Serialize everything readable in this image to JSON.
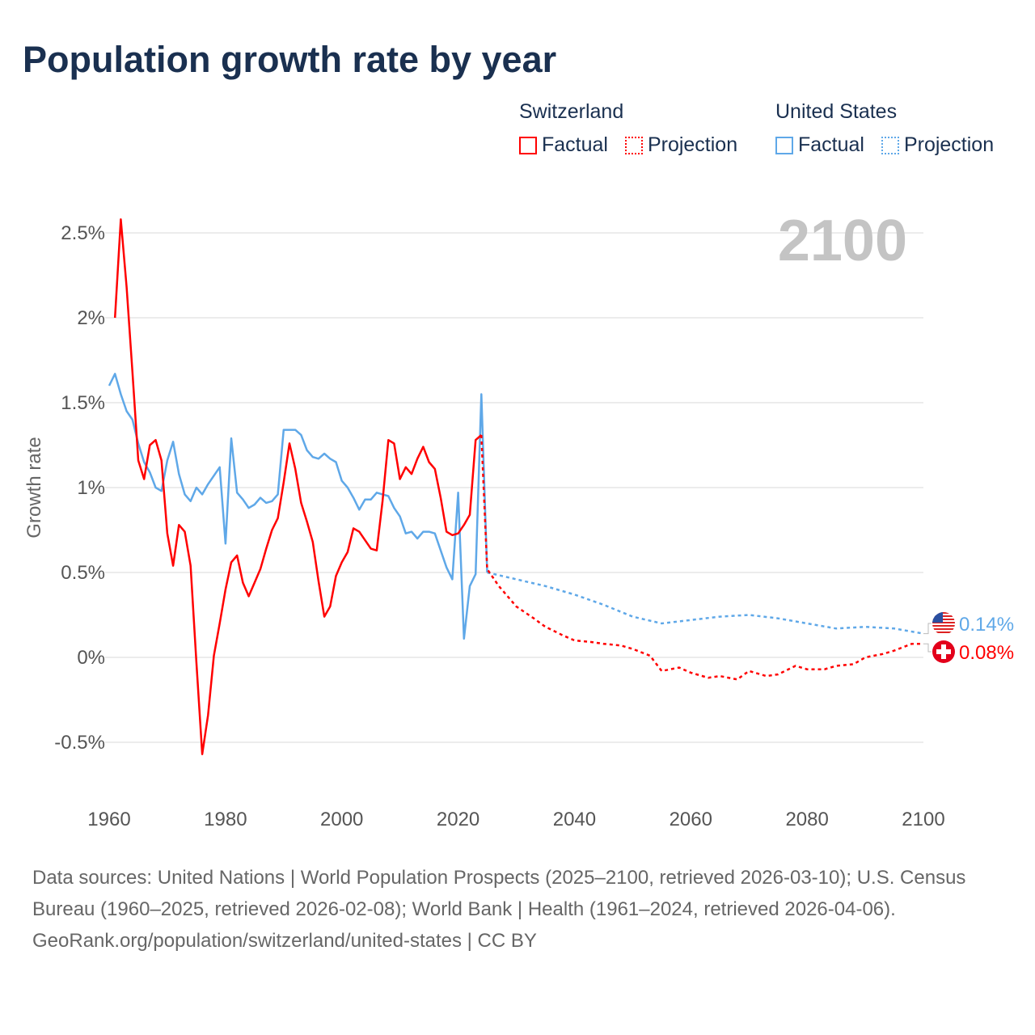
{
  "title": "Population growth rate by year",
  "legend": {
    "groups": [
      {
        "name": "Switzerland",
        "color": "#ff0000",
        "factual": "Factual",
        "projection": "Projection"
      },
      {
        "name": "United States",
        "color": "#5fa8e8",
        "factual": "Factual",
        "projection": "Projection"
      }
    ]
  },
  "year_label": "2100",
  "footer": {
    "sources": "Data sources: United Nations | World Population Prospects (2025–2100, retrieved 2026-03-10); U.S. Census Bureau (1960–2025, retrieved 2026-02-08); World Bank | Health (1961–2024, retrieved 2026-04-06).",
    "credit": "GeoRank.org/population/switzerland/united-states | CC BY"
  },
  "chart_data": {
    "type": "line",
    "title": "Population growth rate by year",
    "xlabel": "",
    "ylabel": "Growth rate",
    "xlim": [
      1960,
      2100
    ],
    "ylim": [
      -0.7,
      2.7
    ],
    "xticks": [
      1960,
      1980,
      2000,
      2020,
      2040,
      2060,
      2080,
      2100
    ],
    "xtick_labels": [
      "1960",
      "1980",
      "2000",
      "2020",
      "2040",
      "2060",
      "2080",
      "2100"
    ],
    "yticks": [
      -0.5,
      0,
      0.5,
      1,
      1.5,
      2,
      2.5
    ],
    "ytick_labels": [
      "-0.5%",
      "0%",
      "0.5%",
      "1%",
      "1.5%",
      "2%",
      "2.5%"
    ],
    "grid": true,
    "legend_position": "top-right",
    "series": [
      {
        "name": "Switzerland",
        "color": "#ff0000",
        "end_label": "0.08%",
        "factual": {
          "x": [
            1961,
            1962,
            1963,
            1964,
            1965,
            1966,
            1967,
            1968,
            1969,
            1970,
            1971,
            1972,
            1973,
            1974,
            1975,
            1976,
            1977,
            1978,
            1979,
            1980,
            1981,
            1982,
            1983,
            1984,
            1985,
            1986,
            1987,
            1988,
            1989,
            1990,
            1991,
            1992,
            1993,
            1994,
            1995,
            1996,
            1997,
            1998,
            1999,
            2000,
            2001,
            2002,
            2003,
            2004,
            2005,
            2006,
            2007,
            2008,
            2009,
            2010,
            2011,
            2012,
            2013,
            2014,
            2015,
            2016,
            2017,
            2018,
            2019,
            2020,
            2021,
            2022,
            2023,
            2024
          ],
          "y": [
            2.0,
            2.58,
            2.18,
            1.68,
            1.16,
            1.05,
            1.25,
            1.28,
            1.16,
            0.73,
            0.54,
            0.78,
            0.74,
            0.54,
            -0.03,
            -0.57,
            -0.34,
            0.01,
            0.2,
            0.4,
            0.56,
            0.6,
            0.44,
            0.36,
            0.44,
            0.52,
            0.64,
            0.75,
            0.82,
            1.03,
            1.26,
            1.11,
            0.91,
            0.8,
            0.68,
            0.45,
            0.24,
            0.3,
            0.48,
            0.56,
            0.62,
            0.76,
            0.74,
            0.69,
            0.64,
            0.63,
            0.92,
            1.28,
            1.26,
            1.05,
            1.12,
            1.08,
            1.17,
            1.24,
            1.15,
            1.11,
            0.94,
            0.74,
            0.72,
            0.73,
            0.78,
            0.84,
            1.28,
            1.31
          ]
        },
        "projection": {
          "x": [
            2024,
            2025,
            2027,
            2030,
            2033,
            2035,
            2038,
            2040,
            2043,
            2045,
            2048,
            2050,
            2053,
            2055,
            2058,
            2060,
            2063,
            2065,
            2068,
            2070,
            2073,
            2075,
            2078,
            2080,
            2083,
            2085,
            2088,
            2090,
            2093,
            2095,
            2098,
            2100
          ],
          "y": [
            1.31,
            0.52,
            0.42,
            0.3,
            0.23,
            0.18,
            0.13,
            0.1,
            0.09,
            0.08,
            0.07,
            0.05,
            0.01,
            -0.08,
            -0.06,
            -0.09,
            -0.12,
            -0.11,
            -0.13,
            -0.08,
            -0.11,
            -0.1,
            -0.05,
            -0.07,
            -0.07,
            -0.05,
            -0.04,
            0.0,
            0.02,
            0.04,
            0.08,
            0.08
          ]
        }
      },
      {
        "name": "United States",
        "color": "#5fa8e8",
        "end_label": "0.14%",
        "factual": {
          "x": [
            1960,
            1961,
            1962,
            1963,
            1964,
            1965,
            1966,
            1967,
            1968,
            1969,
            1970,
            1971,
            1972,
            1973,
            1974,
            1975,
            1976,
            1977,
            1978,
            1979,
            1980,
            1981,
            1982,
            1983,
            1984,
            1985,
            1986,
            1987,
            1988,
            1989,
            1990,
            1991,
            1992,
            1993,
            1994,
            1995,
            1996,
            1997,
            1998,
            1999,
            2000,
            2001,
            2002,
            2003,
            2004,
            2005,
            2006,
            2007,
            2008,
            2009,
            2010,
            2011,
            2012,
            2013,
            2014,
            2015,
            2016,
            2017,
            2018,
            2019,
            2020,
            2021,
            2022,
            2023,
            2024,
            2025
          ],
          "y": [
            1.6,
            1.67,
            1.55,
            1.45,
            1.4,
            1.26,
            1.15,
            1.09,
            1.0,
            0.98,
            1.16,
            1.27,
            1.08,
            0.96,
            0.92,
            1.0,
            0.96,
            1.02,
            1.07,
            1.12,
            0.67,
            1.29,
            0.97,
            0.93,
            0.88,
            0.9,
            0.94,
            0.91,
            0.92,
            0.96,
            1.34,
            1.34,
            1.34,
            1.31,
            1.22,
            1.18,
            1.17,
            1.2,
            1.17,
            1.15,
            1.04,
            1.0,
            0.94,
            0.87,
            0.93,
            0.93,
            0.97,
            0.96,
            0.95,
            0.88,
            0.83,
            0.73,
            0.74,
            0.7,
            0.74,
            0.74,
            0.73,
            0.63,
            0.53,
            0.46,
            0.97,
            0.11,
            0.42,
            0.49,
            1.55,
            0.5
          ]
        },
        "projection": {
          "x": [
            2025,
            2030,
            2035,
            2040,
            2045,
            2050,
            2055,
            2060,
            2065,
            2070,
            2075,
            2080,
            2085,
            2090,
            2095,
            2100
          ],
          "y": [
            0.5,
            0.46,
            0.42,
            0.37,
            0.31,
            0.24,
            0.2,
            0.22,
            0.24,
            0.25,
            0.23,
            0.2,
            0.17,
            0.18,
            0.17,
            0.14
          ]
        }
      }
    ]
  }
}
